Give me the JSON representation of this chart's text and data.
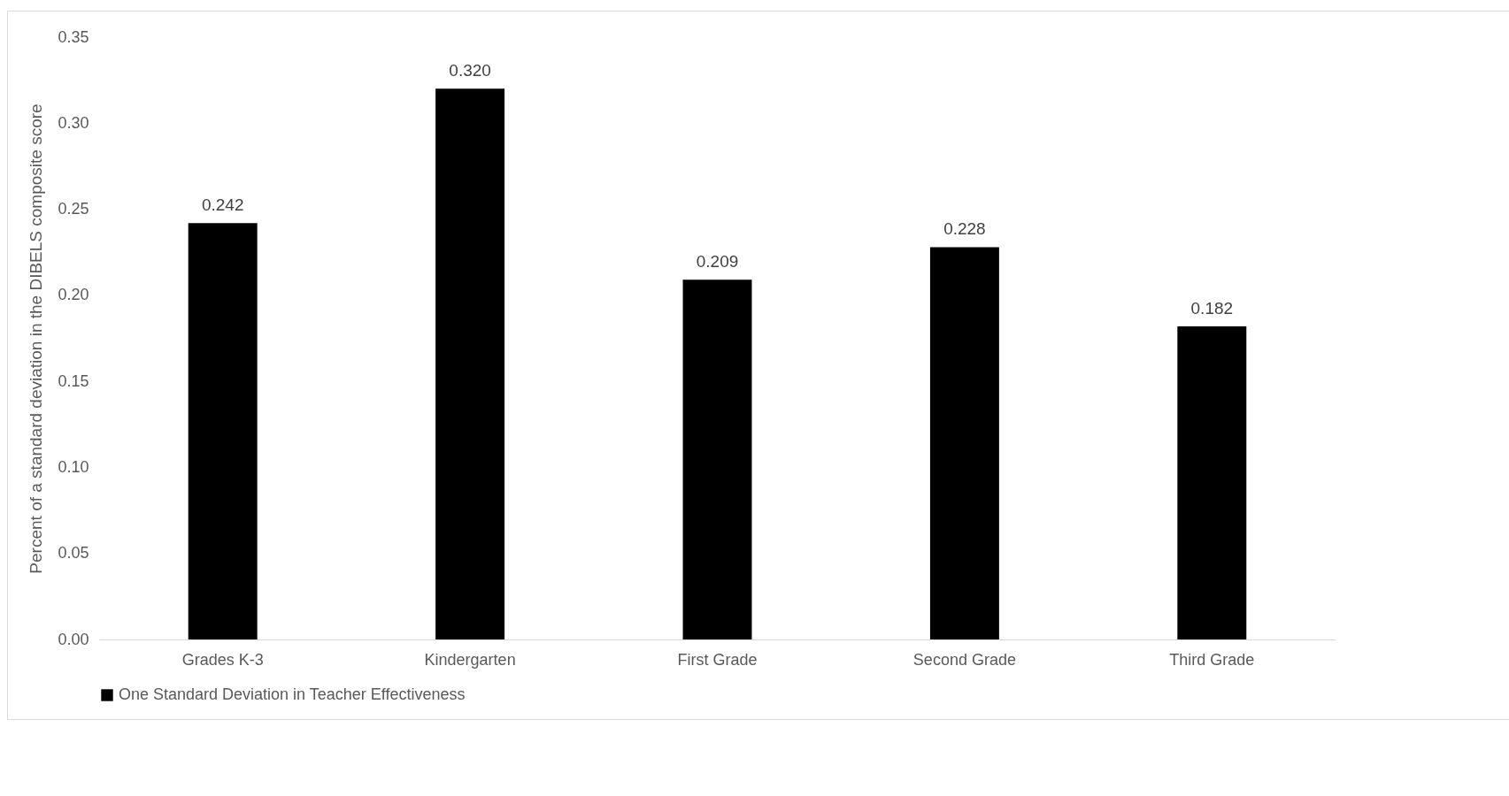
{
  "chart_data": {
    "type": "bar",
    "categories": [
      "Grades K-3",
      "Kindergarten",
      "First Grade",
      "Second Grade",
      "Third Grade"
    ],
    "series": [
      {
        "name": "One Standard Deviation in Teacher Effectiveness",
        "color": "#000000",
        "values": [
          0.242,
          0.32,
          0.209,
          0.228,
          0.182
        ]
      }
    ],
    "ylabel": "Percent of a standard deviation in the DIBELS composite score",
    "ylim": [
      0,
      0.35
    ],
    "yticks": [
      {
        "value": 0,
        "label": "0.00"
      },
      {
        "value": 0.05,
        "label": "0.05"
      },
      {
        "value": 0.1,
        "label": "0.10"
      },
      {
        "value": 0.15,
        "label": "0.15"
      },
      {
        "value": 0.2,
        "label": "0.20"
      },
      {
        "value": 0.25,
        "label": "0.25"
      },
      {
        "value": 0.3,
        "label": "0.30"
      },
      {
        "value": 0.35,
        "label": "0.35"
      }
    ],
    "value_labels": [
      "0.242",
      "0.320",
      "0.209",
      "0.228",
      "0.182"
    ],
    "grid": false,
    "legend": "bottom"
  }
}
